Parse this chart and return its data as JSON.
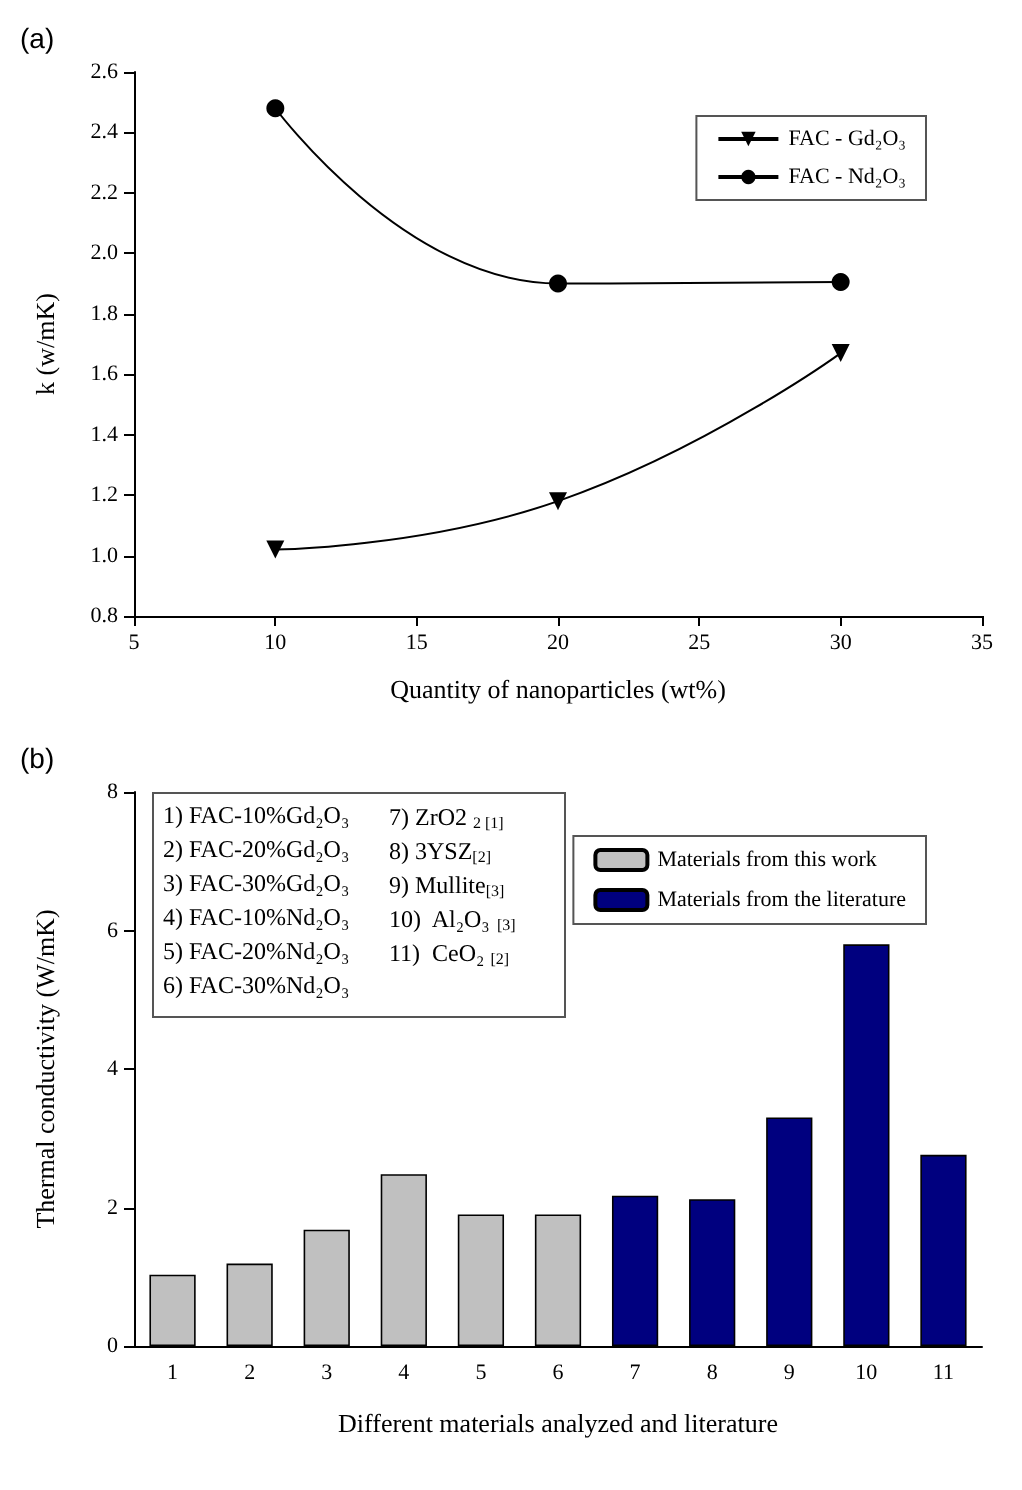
{
  "chart_data": [
    {
      "type": "line",
      "xlabel": "Quantity of nanoparticles (wt%)",
      "ylabel": "k (w/mK)",
      "annotations": [
        "(a)"
      ],
      "x": [
        10,
        20,
        30
      ],
      "series": [
        {
          "name": "FAC - Gd₂O₃",
          "color": "#000000",
          "marker": "triangle",
          "values": [
            1.02,
            1.18,
            1.67
          ]
        },
        {
          "name": "FAC - Nd₂O₃",
          "color": "#000000",
          "marker": "circle",
          "values": [
            2.48,
            1.9,
            1.905
          ]
        }
      ],
      "xlim": [
        5,
        35
      ],
      "xticks": [
        5,
        10,
        15,
        20,
        25,
        30,
        35
      ],
      "ylim": [
        0.8,
        2.6
      ],
      "yticks": [
        0.8,
        {
          "value": 1,
          "label": "1.0"
        },
        1.2,
        1.4,
        1.6,
        1.8,
        {
          "value": 2,
          "label": "2.0"
        },
        2.2,
        2.4,
        2.6
      ],
      "grid": false,
      "legend": "top right",
      "line_style": "solid"
    },
    {
      "type": "bar",
      "xlabel": "Different materials analyzed and literature",
      "ylabel": "Thermal conductivity (W/mK)",
      "annotations": [
        "(b)",
        "1) FAC-10%Gd₂O₃",
        "2) FAC-20%Gd₂O₃",
        "3) FAC-30%Gd₂O₃",
        "4) FAC-10%Nd₂O₃",
        "5) FAC-20%Nd₂O₃",
        "6) FAC-30%Nd₂O₃",
        "7) ZrO2 $_{2 [1]}$",
        "8) 3YSZ$_{[2]}$",
        "9) Mullite$_{[3]}$",
        "10)  Al₂O₃ $_{[3]}$",
        "11)  CeO₂ $_{[2]}$"
      ],
      "categories": [
        "1",
        "2",
        "3",
        "4",
        "5",
        "6",
        "7",
        "8",
        "9",
        "10",
        "11"
      ],
      "series": [
        {
          "name": "Materials from this work",
          "color": "#c0c0c0",
          "values": [
            1.03,
            1.19,
            1.68,
            2.48,
            1.9,
            1.9,
            null,
            null,
            null,
            null,
            null
          ]
        },
        {
          "name": "Materials from the literature",
          "color": "#00007f",
          "values": [
            null,
            null,
            null,
            null,
            null,
            null,
            2.17,
            2.12,
            3.3,
            5.8,
            2.76
          ]
        }
      ],
      "ylim": [
        0,
        8
      ],
      "yticks": [
        0,
        2,
        4,
        6,
        8
      ],
      "grid": false,
      "legend": "top right"
    }
  ]
}
